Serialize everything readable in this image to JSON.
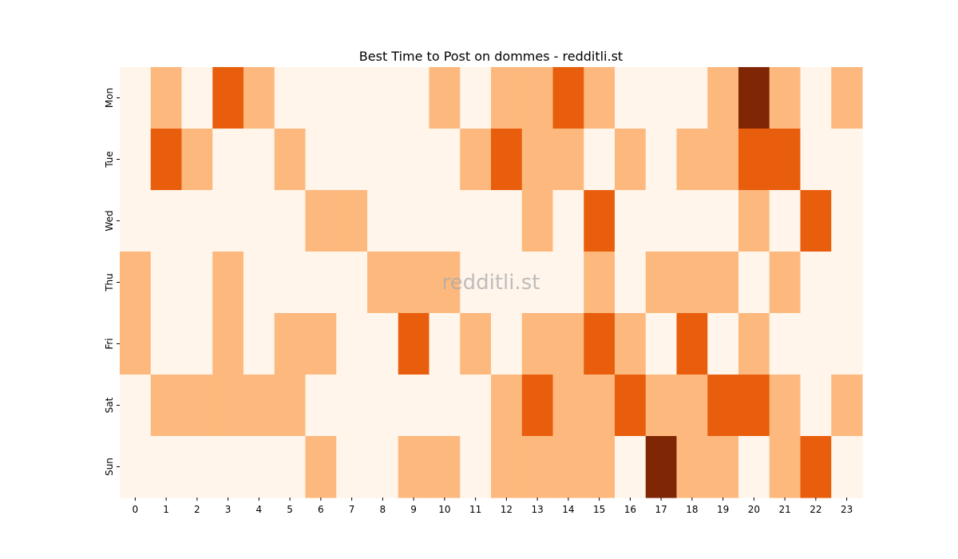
{
  "chart_data": {
    "type": "heatmap",
    "title": "Best Time to Post on dommes - redditli.st",
    "watermark": "redditli.st",
    "x_categories": [
      "0",
      "1",
      "2",
      "3",
      "4",
      "5",
      "6",
      "7",
      "8",
      "9",
      "10",
      "11",
      "12",
      "13",
      "14",
      "15",
      "16",
      "17",
      "18",
      "19",
      "20",
      "21",
      "22",
      "23"
    ],
    "y_categories": [
      "Mon",
      "Tue",
      "Wed",
      "Thu",
      "Fri",
      "Sat",
      "Sun"
    ],
    "colormap": "Oranges",
    "max_value": 3,
    "colors": [
      "#fff5eb",
      "#fdb97d",
      "#e95e0d",
      "#7f2704"
    ],
    "grid": false,
    "colorbar": false,
    "values": [
      [
        0,
        1,
        0,
        2,
        1,
        0,
        0,
        0,
        0,
        0,
        1,
        0,
        1,
        1,
        2,
        1,
        0,
        0,
        0,
        1,
        3,
        1,
        0,
        1
      ],
      [
        0,
        2,
        1,
        0,
        0,
        1,
        0,
        0,
        0,
        0,
        0,
        1,
        2,
        1,
        1,
        0,
        1,
        0,
        1,
        1,
        2,
        2,
        0,
        0
      ],
      [
        0,
        0,
        0,
        0,
        0,
        0,
        1,
        1,
        0,
        0,
        0,
        0,
        0,
        1,
        0,
        2,
        0,
        0,
        0,
        0,
        1,
        0,
        2,
        0
      ],
      [
        1,
        0,
        0,
        1,
        0,
        0,
        0,
        0,
        1,
        1,
        1,
        0,
        0,
        0,
        0,
        1,
        0,
        1,
        1,
        1,
        0,
        1,
        0,
        0
      ],
      [
        1,
        0,
        0,
        1,
        0,
        1,
        1,
        0,
        0,
        2,
        0,
        1,
        0,
        1,
        1,
        2,
        1,
        0,
        2,
        0,
        1,
        0,
        0,
        0
      ],
      [
        0,
        1,
        1,
        1,
        1,
        1,
        0,
        0,
        0,
        0,
        0,
        0,
        1,
        2,
        1,
        1,
        2,
        1,
        1,
        2,
        2,
        1,
        0,
        1
      ],
      [
        0,
        0,
        0,
        0,
        0,
        0,
        1,
        0,
        0,
        1,
        1,
        0,
        1,
        1,
        1,
        1,
        0,
        3,
        1,
        1,
        0,
        1,
        2,
        0
      ]
    ]
  }
}
